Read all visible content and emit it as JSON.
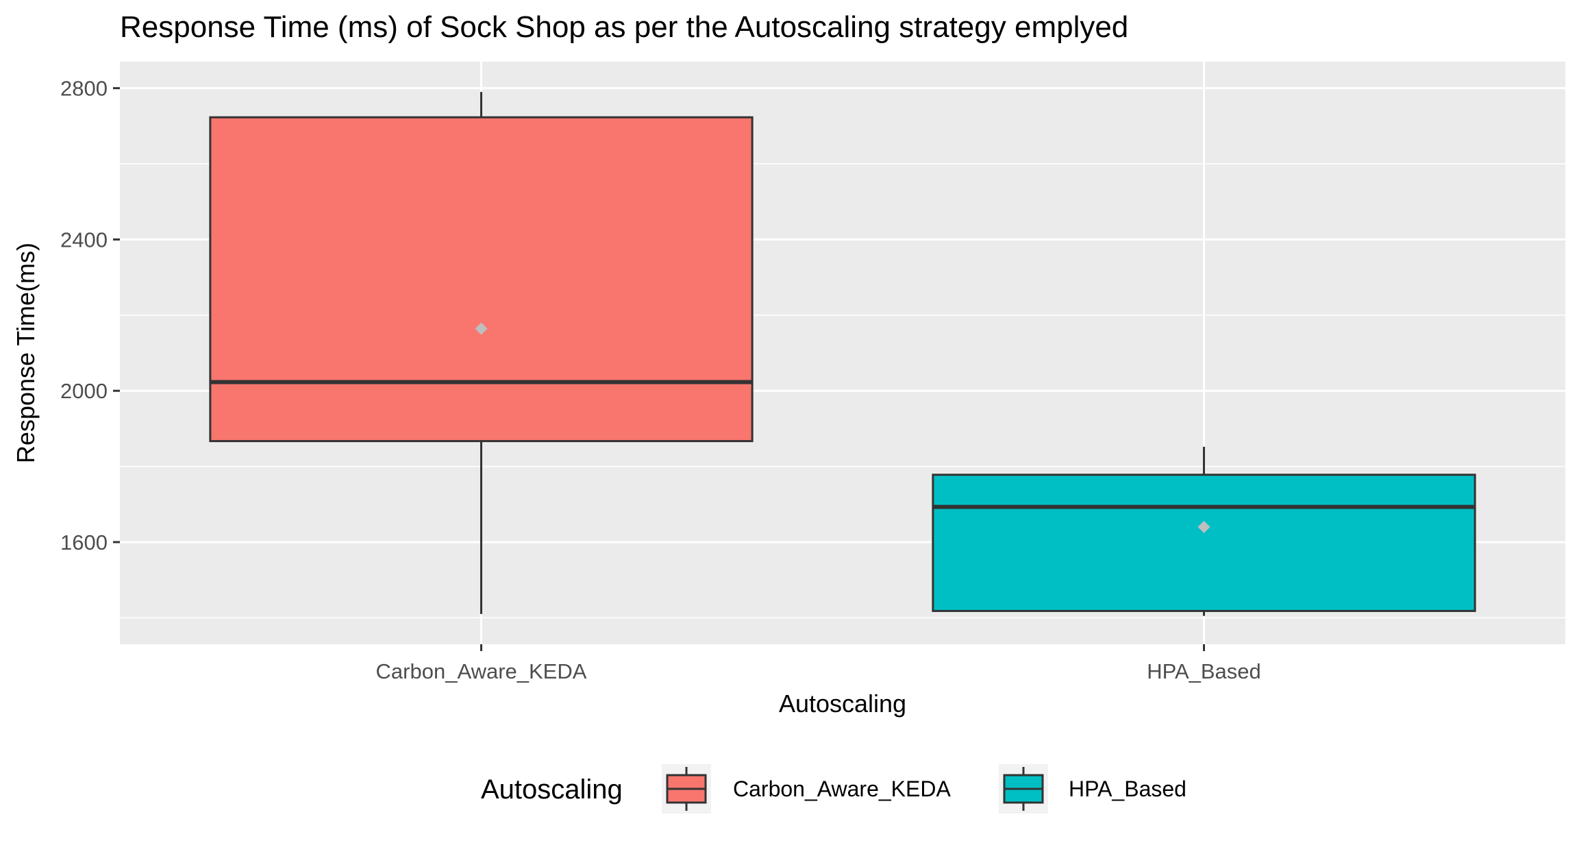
{
  "chart_data": {
    "type": "boxplot",
    "title": "Response Time (ms) of Sock Shop as per the Autoscaling strategy emplyed",
    "xlabel": "Autoscaling",
    "ylabel": "Response Time(ms)",
    "ylim": [
      1330,
      2870
    ],
    "yticks": [
      1600,
      2000,
      2400,
      2800
    ],
    "yticks_minor": [
      1400,
      1800,
      2200,
      2600
    ],
    "grid": true,
    "legend_title": "Autoscaling",
    "legend_position": "bottom",
    "categories": [
      "Carbon_Aware_KEDA",
      "HPA_Based"
    ],
    "boxes": [
      {
        "name": "Carbon_Aware_KEDA",
        "color": "#F8766D",
        "whisker_low": 1410,
        "q1": 1867,
        "median": 2023,
        "q3": 2723,
        "whisker_high": 2790,
        "mean": 2164
      },
      {
        "name": "HPA_Based",
        "color": "#00BFC4",
        "whisker_low": 1405,
        "q1": 1418,
        "median": 1693,
        "q3": 1778,
        "whisker_high": 1852,
        "mean": 1640
      }
    ]
  }
}
